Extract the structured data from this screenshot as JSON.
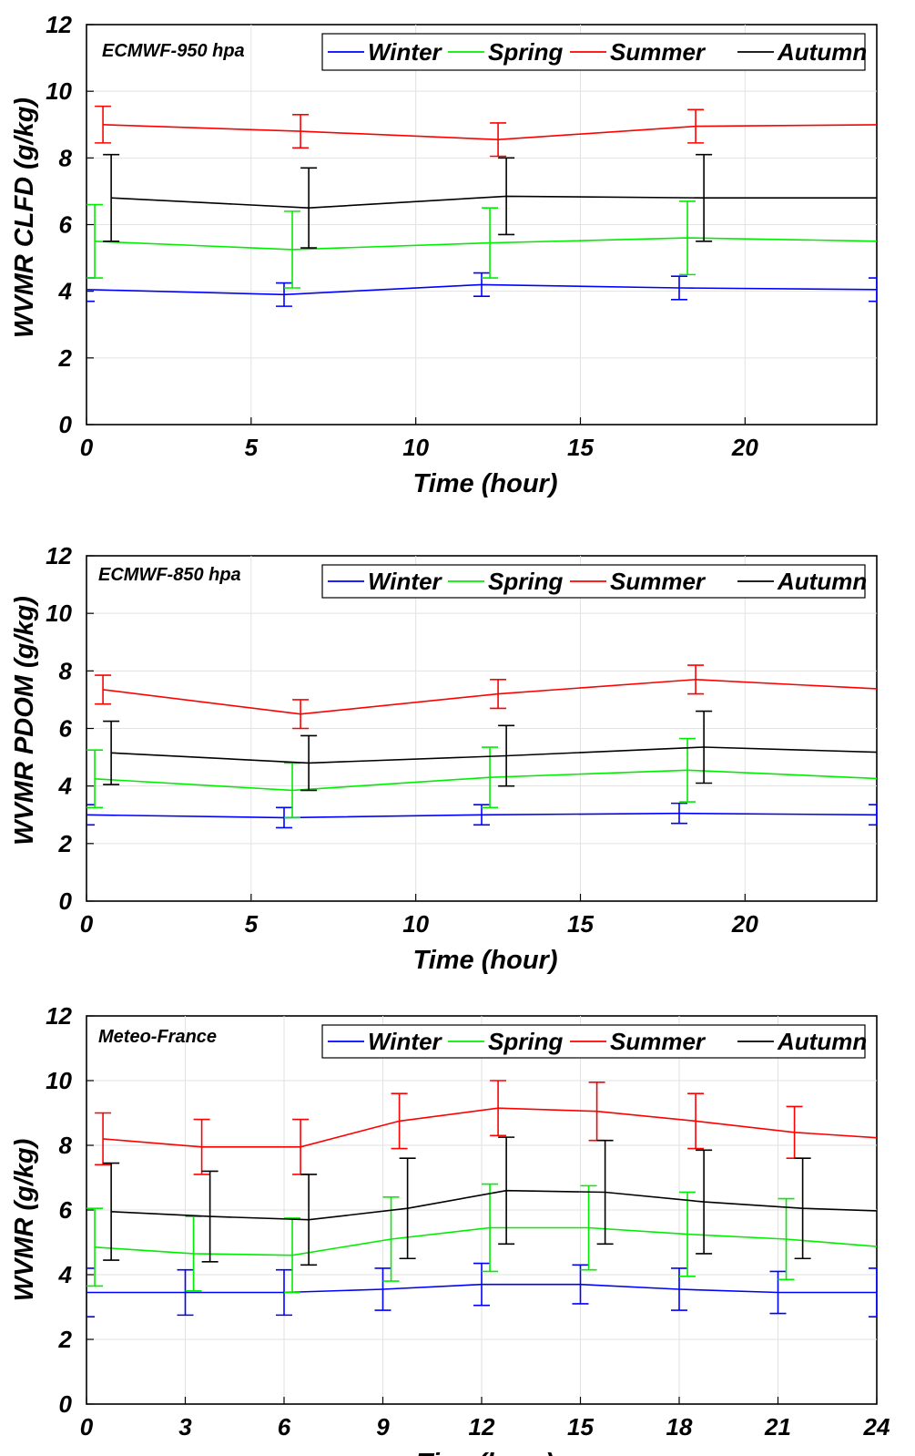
{
  "chart_data": [
    {
      "type": "line",
      "panel": "ECMWF-950",
      "title": "",
      "annotation": "ECMWF-950 hpa",
      "xlabel": "Time (hour)",
      "ylabel": "WVMR CLFD (g/kg)",
      "xlim": [
        0,
        24
      ],
      "ylim": [
        0,
        12
      ],
      "xticks": [
        0,
        5,
        10,
        15,
        20
      ],
      "yticks": [
        0,
        2,
        4,
        6,
        8,
        10,
        12
      ],
      "grid": true,
      "legend_position": "top-right",
      "legend_orientation": "horizontal",
      "series": [
        {
          "name": "Winter",
          "color": "#0000ff",
          "x": [
            0,
            6,
            12,
            18,
            24
          ],
          "y": [
            4.05,
            3.9,
            4.2,
            4.1,
            4.05
          ],
          "err": [
            0.35,
            0.35,
            0.35,
            0.35,
            0.35
          ]
        },
        {
          "name": "Spring",
          "color": "#00ee00",
          "x": [
            0.25,
            6.25,
            12.25,
            18.25,
            24.25
          ],
          "y": [
            5.5,
            5.25,
            5.45,
            5.6,
            5.5
          ],
          "err": [
            1.1,
            1.15,
            1.05,
            1.1,
            1.1
          ]
        },
        {
          "name": "Summer",
          "color": "#ff0000",
          "x": [
            0.5,
            6.5,
            12.5,
            18.5,
            24.5
          ],
          "y": [
            9.0,
            8.8,
            8.55,
            8.95,
            9.0
          ],
          "err": [
            0.55,
            0.5,
            0.5,
            0.5,
            0.5
          ]
        },
        {
          "name": "Autumn",
          "color": "#000000",
          "x": [
            0.75,
            6.75,
            12.75,
            18.75,
            24.75
          ],
          "y": [
            6.8,
            6.5,
            6.85,
            6.8,
            6.8
          ],
          "err": [
            1.3,
            1.2,
            1.15,
            1.3,
            1.3
          ]
        }
      ]
    },
    {
      "type": "line",
      "panel": "ECMWF-850",
      "title": "",
      "annotation": "ECMWF-850 hpa",
      "xlabel": "Time (hour)",
      "ylabel": "WVMR PDOM (g/kg)",
      "xlim": [
        0,
        24
      ],
      "ylim": [
        0,
        12
      ],
      "xticks": [
        0,
        5,
        10,
        15,
        20
      ],
      "yticks": [
        0,
        2,
        4,
        6,
        8,
        10,
        12
      ],
      "grid": true,
      "legend_position": "top-right",
      "legend_orientation": "horizontal",
      "series": [
        {
          "name": "Winter",
          "color": "#0000ff",
          "x": [
            0,
            6,
            12,
            18,
            24
          ],
          "y": [
            3.0,
            2.9,
            3.0,
            3.05,
            3.0
          ],
          "err": [
            0.35,
            0.35,
            0.35,
            0.35,
            0.35
          ]
        },
        {
          "name": "Spring",
          "color": "#00ee00",
          "x": [
            0.25,
            6.25,
            12.25,
            18.25,
            24.25
          ],
          "y": [
            4.25,
            3.85,
            4.3,
            4.55,
            4.25
          ],
          "err": [
            1.0,
            0.95,
            1.05,
            1.1,
            1.0
          ]
        },
        {
          "name": "Summer",
          "color": "#ff0000",
          "x": [
            0.5,
            6.5,
            12.5,
            18.5,
            24.5
          ],
          "y": [
            7.35,
            6.5,
            7.2,
            7.7,
            7.35
          ],
          "err": [
            0.5,
            0.5,
            0.5,
            0.5,
            0.5
          ]
        },
        {
          "name": "Autumn",
          "color": "#000000",
          "x": [
            0.75,
            6.75,
            12.75,
            18.75,
            24.75
          ],
          "y": [
            5.15,
            4.8,
            5.05,
            5.35,
            5.15
          ],
          "err": [
            1.1,
            0.95,
            1.05,
            1.25,
            1.1
          ]
        }
      ]
    },
    {
      "type": "line",
      "panel": "Meteo-France",
      "title": "",
      "annotation": "Meteo-France",
      "xlabel": "Time(hour)",
      "ylabel": "WVMR (g/kg)",
      "xlim": [
        0,
        24
      ],
      "ylim": [
        0,
        12
      ],
      "xticks": [
        0,
        3,
        6,
        9,
        12,
        15,
        18,
        21,
        24
      ],
      "yticks": [
        0,
        2,
        4,
        6,
        8,
        10,
        12
      ],
      "grid": true,
      "legend_position": "top-right",
      "legend_orientation": "horizontal",
      "series": [
        {
          "name": "Winter",
          "color": "#0000ff",
          "x": [
            0,
            3,
            6,
            9,
            12,
            15,
            18,
            21,
            24
          ],
          "y": [
            3.45,
            3.45,
            3.45,
            3.55,
            3.7,
            3.7,
            3.55,
            3.45,
            3.45
          ],
          "err": [
            0.75,
            0.7,
            0.7,
            0.65,
            0.65,
            0.6,
            0.65,
            0.65,
            0.75
          ]
        },
        {
          "name": "Spring",
          "color": "#00ee00",
          "x": [
            0.25,
            3.25,
            6.25,
            9.25,
            12.25,
            15.25,
            18.25,
            21.25,
            24.25
          ],
          "y": [
            4.85,
            4.65,
            4.6,
            5.1,
            5.45,
            5.45,
            5.25,
            5.1,
            4.85
          ],
          "err": [
            1.2,
            1.15,
            1.15,
            1.3,
            1.35,
            1.3,
            1.3,
            1.25,
            1.2
          ]
        },
        {
          "name": "Summer",
          "color": "#ff0000",
          "x": [
            0.5,
            3.5,
            6.5,
            9.5,
            12.5,
            15.5,
            18.5,
            21.5,
            24.5
          ],
          "y": [
            8.2,
            7.95,
            7.95,
            8.75,
            9.15,
            9.05,
            8.75,
            8.4,
            8.2
          ],
          "err": [
            0.8,
            0.85,
            0.85,
            0.85,
            0.85,
            0.9,
            0.85,
            0.8,
            0.8
          ]
        },
        {
          "name": "Autumn",
          "color": "#000000",
          "x": [
            0.75,
            3.75,
            6.75,
            9.75,
            12.75,
            15.75,
            18.75,
            21.75,
            24.75
          ],
          "y": [
            5.95,
            5.8,
            5.7,
            6.05,
            6.6,
            6.55,
            6.25,
            6.05,
            5.95
          ],
          "err": [
            1.5,
            1.4,
            1.4,
            1.55,
            1.65,
            1.6,
            1.6,
            1.55,
            1.5
          ]
        }
      ]
    }
  ]
}
